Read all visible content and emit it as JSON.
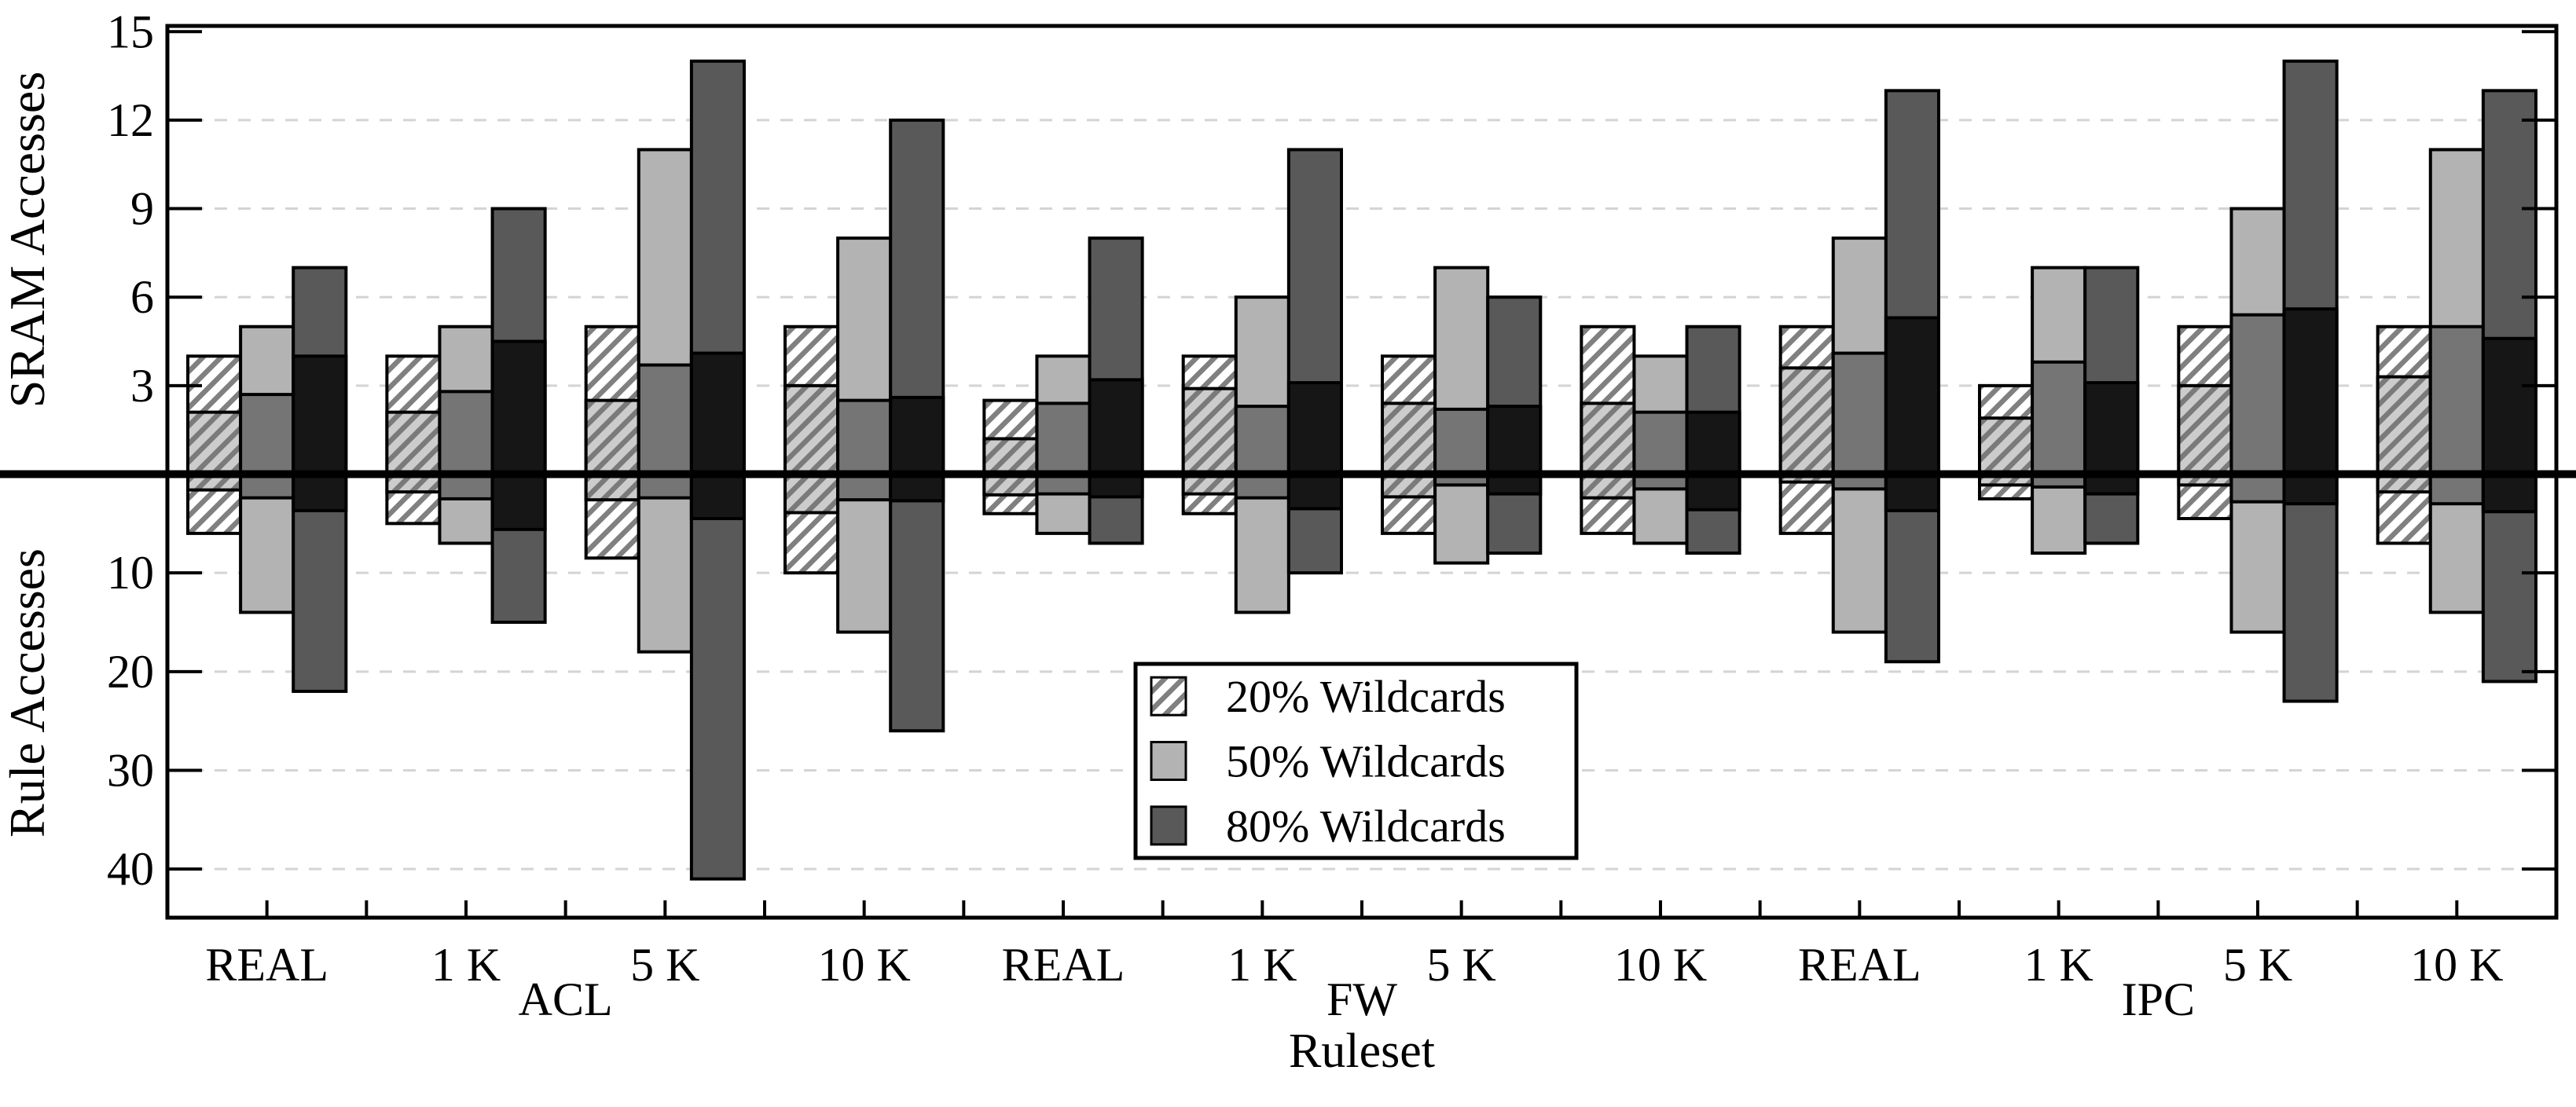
{
  "chart_data": {
    "type": "bar",
    "title": "",
    "xlabel": "Ruleset",
    "ylabel_top": "SRAM Accesses",
    "ylabel_bottom": "Rule Accesses",
    "grid": true,
    "legend_position": "bottom-center-right",
    "axis_top": {
      "ticks": [
        3,
        6,
        9,
        12,
        15
      ],
      "range": [
        0,
        15.2
      ]
    },
    "axis_bottom": {
      "ticks": [
        10,
        20,
        30,
        40
      ],
      "range": [
        0,
        44.9
      ]
    },
    "legend": [
      "20% Wildcards",
      "50% Wildcards",
      "80% Wildcards"
    ],
    "series_styles": [
      {
        "name": "20% Wildcards",
        "max_fill": "hatch-white",
        "avg_fill": "hatch-gray",
        "hatch_line_color": "#808080",
        "avg_bg": "#cccccc",
        "max_bg": "#ffffff"
      },
      {
        "name": "50% Wildcards",
        "max_fill": "#b3b3b3",
        "avg_fill": "#757575"
      },
      {
        "name": "80% Wildcards",
        "max_fill": "#595959",
        "avg_fill": "#161616"
      }
    ],
    "value_format": [
      "sram_max",
      "sram_avg",
      "rule_max",
      "rule_avg"
    ],
    "sections": [
      {
        "name": "ACL",
        "groups": [
          {
            "label": "REAL",
            "bars": [
              [
                4.0,
                2.1,
                6,
                1.6
              ],
              [
                5.0,
                2.7,
                14,
                2.4
              ],
              [
                7.0,
                4.0,
                22,
                3.7
              ]
            ]
          },
          {
            "label": "1 K",
            "bars": [
              [
                4.0,
                2.1,
                5,
                1.8
              ],
              [
                5.0,
                2.8,
                7,
                2.5
              ],
              [
                9.0,
                4.5,
                15,
                5.6
              ]
            ]
          },
          {
            "label": "5 K",
            "bars": [
              [
                5.0,
                2.5,
                8.5,
                2.6
              ],
              [
                11.0,
                3.7,
                18,
                2.4
              ],
              [
                14.0,
                4.1,
                41,
                4.5
              ]
            ]
          },
          {
            "label": "10 K",
            "bars": [
              [
                5.0,
                3.0,
                10,
                3.9
              ],
              [
                8.0,
                2.5,
                16,
                2.6
              ],
              [
                12.0,
                2.6,
                26,
                2.7
              ]
            ]
          }
        ]
      },
      {
        "name": "FW",
        "groups": [
          {
            "label": "REAL",
            "bars": [
              [
                2.5,
                1.2,
                4,
                2.1
              ],
              [
                4.0,
                2.4,
                6,
                2.0
              ],
              [
                8.0,
                3.2,
                7,
                2.3
              ]
            ]
          },
          {
            "label": "1 K",
            "bars": [
              [
                4.0,
                2.9,
                4,
                2.0
              ],
              [
                6.0,
                2.3,
                14,
                2.4
              ],
              [
                11.0,
                3.1,
                10,
                3.5
              ]
            ]
          },
          {
            "label": "5 K",
            "bars": [
              [
                4.0,
                2.4,
                6,
                2.3
              ],
              [
                7.0,
                2.2,
                9,
                1.1
              ],
              [
                6.0,
                2.3,
                8,
                2.0
              ]
            ]
          },
          {
            "label": "10 K",
            "bars": [
              [
                5.0,
                2.4,
                6,
                2.4
              ],
              [
                4.0,
                2.1,
                7,
                1.5
              ],
              [
                5.0,
                2.1,
                8,
                3.6
              ]
            ]
          }
        ]
      },
      {
        "name": "IPC",
        "groups": [
          {
            "label": "REAL",
            "bars": [
              [
                5.0,
                3.6,
                6,
                0.8
              ],
              [
                8.0,
                4.1,
                16,
                1.5
              ],
              [
                13.0,
                5.3,
                19,
                3.7
              ]
            ]
          },
          {
            "label": "1 K",
            "bars": [
              [
                3.0,
                1.9,
                2.5,
                1.1
              ],
              [
                7.0,
                3.8,
                8,
                1.3
              ],
              [
                7.0,
                3.1,
                7,
                2.0
              ]
            ]
          },
          {
            "label": "5 K",
            "bars": [
              [
                5.0,
                3.0,
                4.5,
                1.1
              ],
              [
                9.0,
                5.4,
                16,
                2.8
              ],
              [
                14.0,
                5.6,
                23,
                3.0
              ]
            ]
          },
          {
            "label": "10 K",
            "bars": [
              [
                5.0,
                3.3,
                7,
                1.8
              ],
              [
                11.0,
                5.0,
                14,
                3.0
              ],
              [
                13.0,
                4.6,
                21,
                3.8
              ]
            ]
          }
        ]
      }
    ],
    "colors": {
      "grid": "#d4d4d4",
      "axis": "#000000",
      "zero_line": "#000000",
      "background": "#ffffff"
    }
  }
}
